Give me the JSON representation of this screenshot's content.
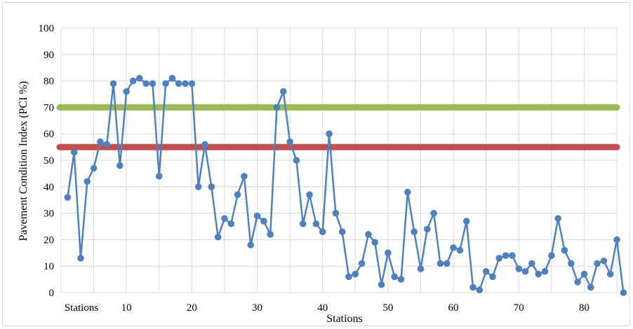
{
  "chart_data": {
    "type": "line",
    "xlabel": "Stations",
    "ylabel": "Pavement Condition Index (PCI %)",
    "ylim": [
      0,
      100
    ],
    "yticks": [
      "0",
      "10",
      "20",
      "30",
      "40",
      "50",
      "60",
      "70",
      "80",
      "90",
      "100"
    ],
    "xlim": [
      0,
      85
    ],
    "xticks": [
      {
        "x": 0,
        "label": "Stations"
      },
      {
        "x": 10,
        "label": "10"
      },
      {
        "x": 20,
        "label": "20"
      },
      {
        "x": 30,
        "label": "30"
      },
      {
        "x": 40,
        "label": "40"
      },
      {
        "x": 50,
        "label": "50"
      },
      {
        "x": 60,
        "label": "60"
      },
      {
        "x": 70,
        "label": "70"
      },
      {
        "x": 80,
        "label": "80"
      }
    ],
    "grid": "horizontal and vertical",
    "legend": "none",
    "series": [
      {
        "color": "#4f81bd",
        "marker": "circle",
        "x": [
          1,
          2,
          3,
          4,
          5,
          6,
          7,
          8,
          9,
          10,
          11,
          12,
          13,
          14,
          15,
          16,
          17,
          18,
          19,
          20,
          21,
          22,
          23,
          24,
          25,
          26,
          27,
          28,
          29,
          30,
          31,
          32,
          33,
          34,
          35,
          36,
          37,
          38,
          39,
          40,
          41,
          42,
          43,
          44,
          45,
          46,
          47,
          48,
          49,
          50,
          51,
          52,
          53,
          54,
          55,
          56,
          57,
          58,
          59,
          60,
          61,
          62,
          63,
          64,
          65,
          66,
          67,
          68,
          69,
          70,
          71,
          72,
          73,
          74,
          75,
          76,
          77,
          78,
          79,
          80,
          81,
          82,
          83,
          84,
          85,
          86
        ],
        "values": [
          36,
          53,
          13,
          42,
          47,
          57,
          56,
          79,
          48,
          76,
          80,
          81,
          79,
          79,
          44,
          79,
          81,
          79,
          79,
          79,
          40,
          56,
          40,
          21,
          28,
          26,
          37,
          44,
          18,
          29,
          27,
          22,
          70,
          76,
          57,
          50,
          26,
          37,
          26,
          23,
          60,
          30,
          23,
          6,
          7,
          11,
          22,
          19,
          3,
          15,
          6,
          5,
          38,
          23,
          9,
          24,
          30,
          11,
          11,
          17,
          16,
          27,
          2,
          1,
          8,
          6,
          13,
          14,
          14,
          9,
          8,
          11,
          7,
          8,
          14,
          28,
          16,
          11,
          4,
          7,
          2,
          11,
          12,
          7,
          20,
          0
        ]
      }
    ],
    "reference_lines": [
      {
        "y": 70,
        "color": "#9bbb59"
      },
      {
        "y": 55,
        "color": "#c0504d"
      }
    ]
  }
}
